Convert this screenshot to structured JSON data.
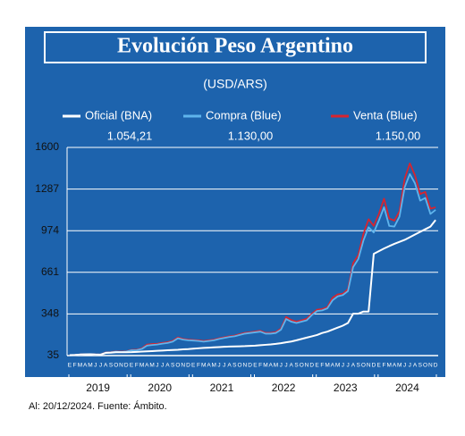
{
  "chart_data": {
    "type": "line",
    "title": "Evolución Peso Argentino",
    "subtitle": "(USD/ARS)",
    "footer": "Al: 20/12/2024. Fuente: Ámbito.",
    "categories": [
      "E",
      "F",
      "M",
      "A",
      "M",
      "J",
      "J",
      "A",
      "S",
      "O",
      "N",
      "D",
      "E",
      "F",
      "M",
      "A",
      "M",
      "J",
      "J",
      "A",
      "S",
      "O",
      "N",
      "D",
      "E",
      "F",
      "M",
      "A",
      "M",
      "J",
      "J",
      "A",
      "S",
      "O",
      "N",
      "D",
      "E",
      "F",
      "M",
      "A",
      "M",
      "J",
      "J",
      "A",
      "S",
      "O",
      "N",
      "D",
      "E",
      "F",
      "M",
      "A",
      "M",
      "J",
      "J",
      "A",
      "S",
      "O",
      "N",
      "D",
      "E",
      "F",
      "M",
      "A",
      "M",
      "J",
      "J",
      "A",
      "S",
      "O",
      "N",
      "D"
    ],
    "years": [
      "2019",
      "2020",
      "2021",
      "2022",
      "2023",
      "2024"
    ],
    "ylim": [
      35,
      1600
    ],
    "yticks": [
      35,
      348,
      661,
      974,
      1287,
      1600
    ],
    "grid": true,
    "series": [
      {
        "name": "Oficial (BNA)",
        "color": "#ffffff",
        "latest_label": "1.054,21",
        "values": [
          38,
          40,
          43,
          44,
          45,
          43,
          42,
          55,
          57,
          60,
          60,
          60,
          61,
          63,
          65,
          67,
          69,
          71,
          73,
          75,
          77,
          79,
          82,
          84,
          87,
          90,
          93,
          95,
          97,
          99,
          101,
          103,
          104,
          105,
          106,
          108,
          110,
          113,
          116,
          119,
          123,
          128,
          135,
          141,
          150,
          160,
          170,
          180,
          190,
          205,
          215,
          230,
          245,
          260,
          280,
          350,
          350,
          366,
          366,
          800,
          820,
          840,
          858,
          875,
          890,
          905,
          925,
          945,
          965,
          985,
          1005,
          1054.21
        ]
      },
      {
        "name": "Compra (Blue)",
        "color": "#5fb4ec",
        "latest_label": "1.130,00",
        "values": [
          37,
          39,
          42,
          44,
          45,
          42,
          43,
          58,
          60,
          64,
          62,
          65,
          75,
          76,
          85,
          110,
          115,
          118,
          125,
          130,
          140,
          165,
          155,
          150,
          148,
          145,
          140,
          145,
          150,
          160,
          168,
          175,
          180,
          190,
          200,
          205,
          210,
          215,
          200,
          200,
          205,
          230,
          310,
          290,
          280,
          290,
          300,
          340,
          370,
          375,
          390,
          450,
          480,
          490,
          520,
          700,
          760,
          900,
          1000,
          960,
          1050,
          1150,
          1010,
          1005,
          1080,
          1300,
          1400,
          1330,
          1200,
          1220,
          1100,
          1130
        ]
      },
      {
        "name": "Venta (Blue)",
        "color": "#d8242f",
        "latest_label": "1.150,00",
        "values": [
          38,
          40,
          43,
          45,
          46,
          43,
          44,
          60,
          62,
          66,
          64,
          67,
          78,
          79,
          90,
          118,
          122,
          124,
          131,
          136,
          146,
          172,
          160,
          155,
          152,
          150,
          145,
          150,
          155,
          165,
          173,
          180,
          185,
          196,
          206,
          210,
          216,
          222,
          206,
          206,
          212,
          238,
          325,
          302,
          290,
          300,
          312,
          350,
          380,
          385,
          400,
          470,
          495,
          500,
          535,
          730,
          790,
          950,
          1060,
          1010,
          1100,
          1215,
          1065,
          1050,
          1120,
          1365,
          1480,
          1390,
          1250,
          1265,
          1140,
          1150
        ]
      }
    ]
  }
}
